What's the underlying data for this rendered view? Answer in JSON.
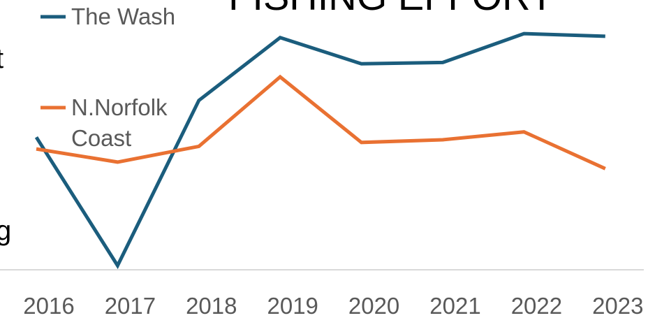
{
  "chart_data": {
    "type": "line",
    "title": "FISHING EFFORT",
    "categories": [
      "2016",
      "2017",
      "2018",
      "2019",
      "2020",
      "2021",
      "2022",
      "2023"
    ],
    "series": [
      {
        "name": "The Wash",
        "color": "#1b5d7d",
        "values": [
          53,
          4,
          67,
          91,
          81,
          81.5,
          92.5,
          91.5
        ]
      },
      {
        "name": "N.Norfolk Coast",
        "color": "#e97132",
        "values": [
          48.5,
          43.5,
          49.5,
          76,
          51,
          52,
          55,
          41
        ]
      }
    ],
    "ylim": [
      0,
      100
    ],
    "grid": false,
    "legend_position": "top-left"
  },
  "side_text": {
    "t_fragment": "t",
    "g_fragment": "g"
  }
}
